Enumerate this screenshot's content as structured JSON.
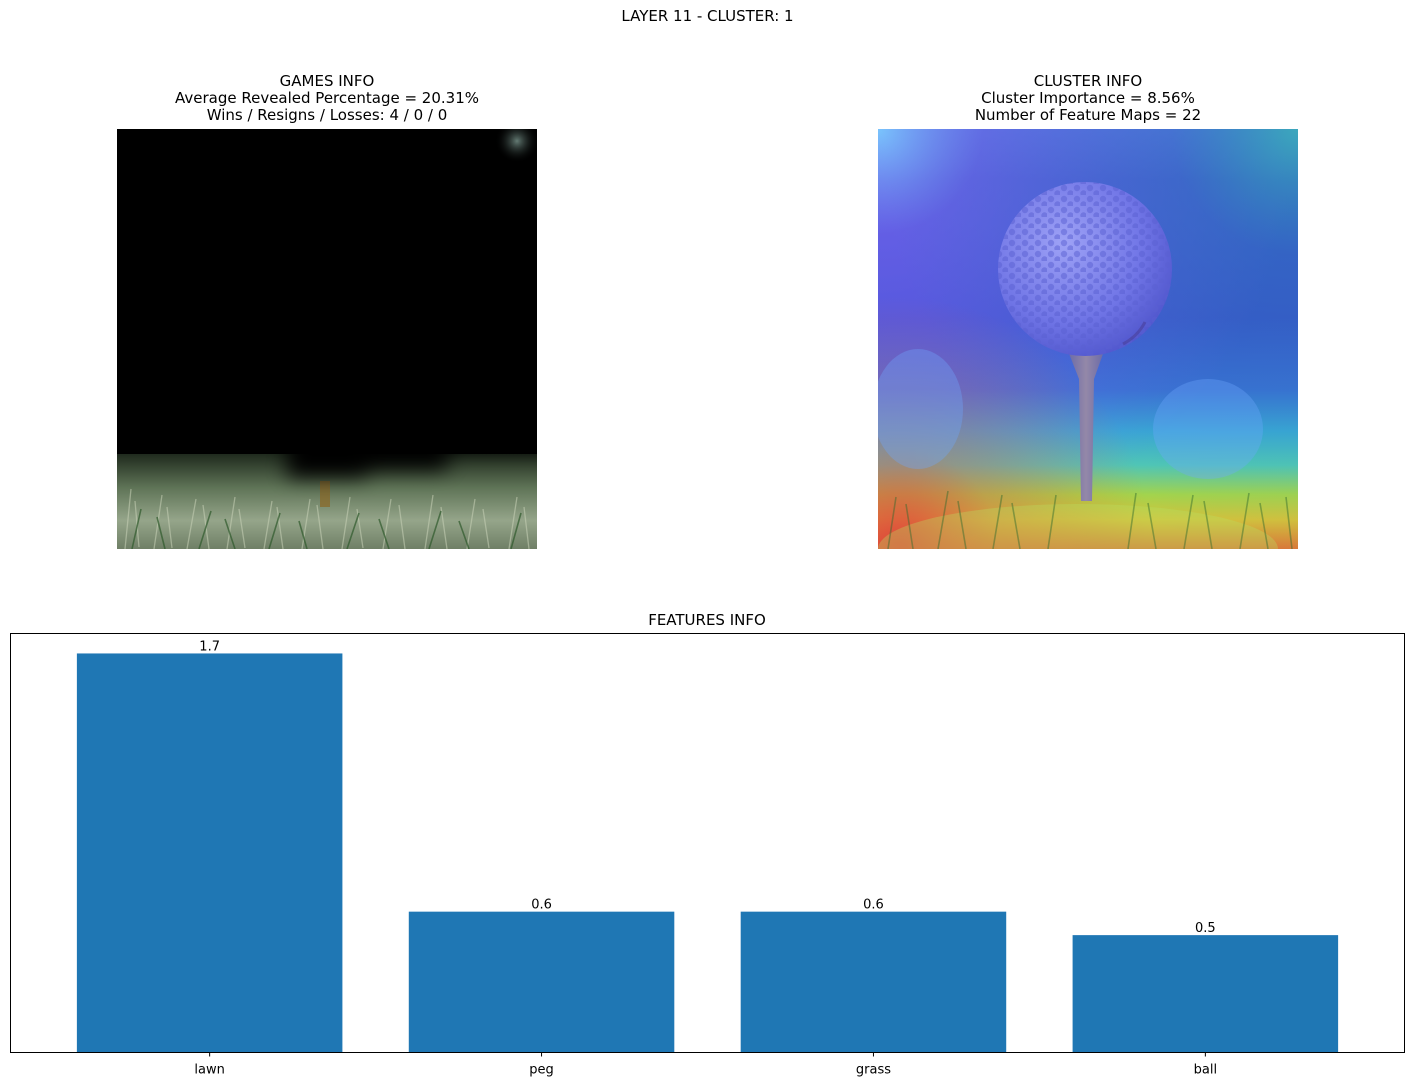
{
  "suptitle": "LAYER 11 - CLUSTER: 1",
  "games_info": {
    "title": "GAMES INFO",
    "line1": "Average Revealed Percentage = 20.31%",
    "line2": "Wins / Resigns / Losses: 4 / 0 / 0"
  },
  "cluster_info": {
    "title": "CLUSTER INFO",
    "line1": "Cluster Importance = 8.56%",
    "line2": "Number of Feature Maps = 22"
  },
  "colors": {
    "bar": "#1f77b4",
    "grass_dark": "#2f4a2c",
    "grass_light": "#8da07a",
    "ball": "#7078e6",
    "heat_background": "#3b3fd6"
  },
  "chart_data": {
    "type": "bar",
    "title": "FEATURES INFO",
    "categories": [
      "lawn",
      "peg",
      "grass",
      "ball"
    ],
    "values": [
      1.7,
      0.6,
      0.6,
      0.5
    ],
    "value_labels": [
      "1.7",
      "0.6",
      "0.6",
      "0.5"
    ],
    "xlabel": "",
    "ylabel": "",
    "ylim": [
      0,
      1.785
    ],
    "y_ticks_visible": false,
    "grid": false
  }
}
